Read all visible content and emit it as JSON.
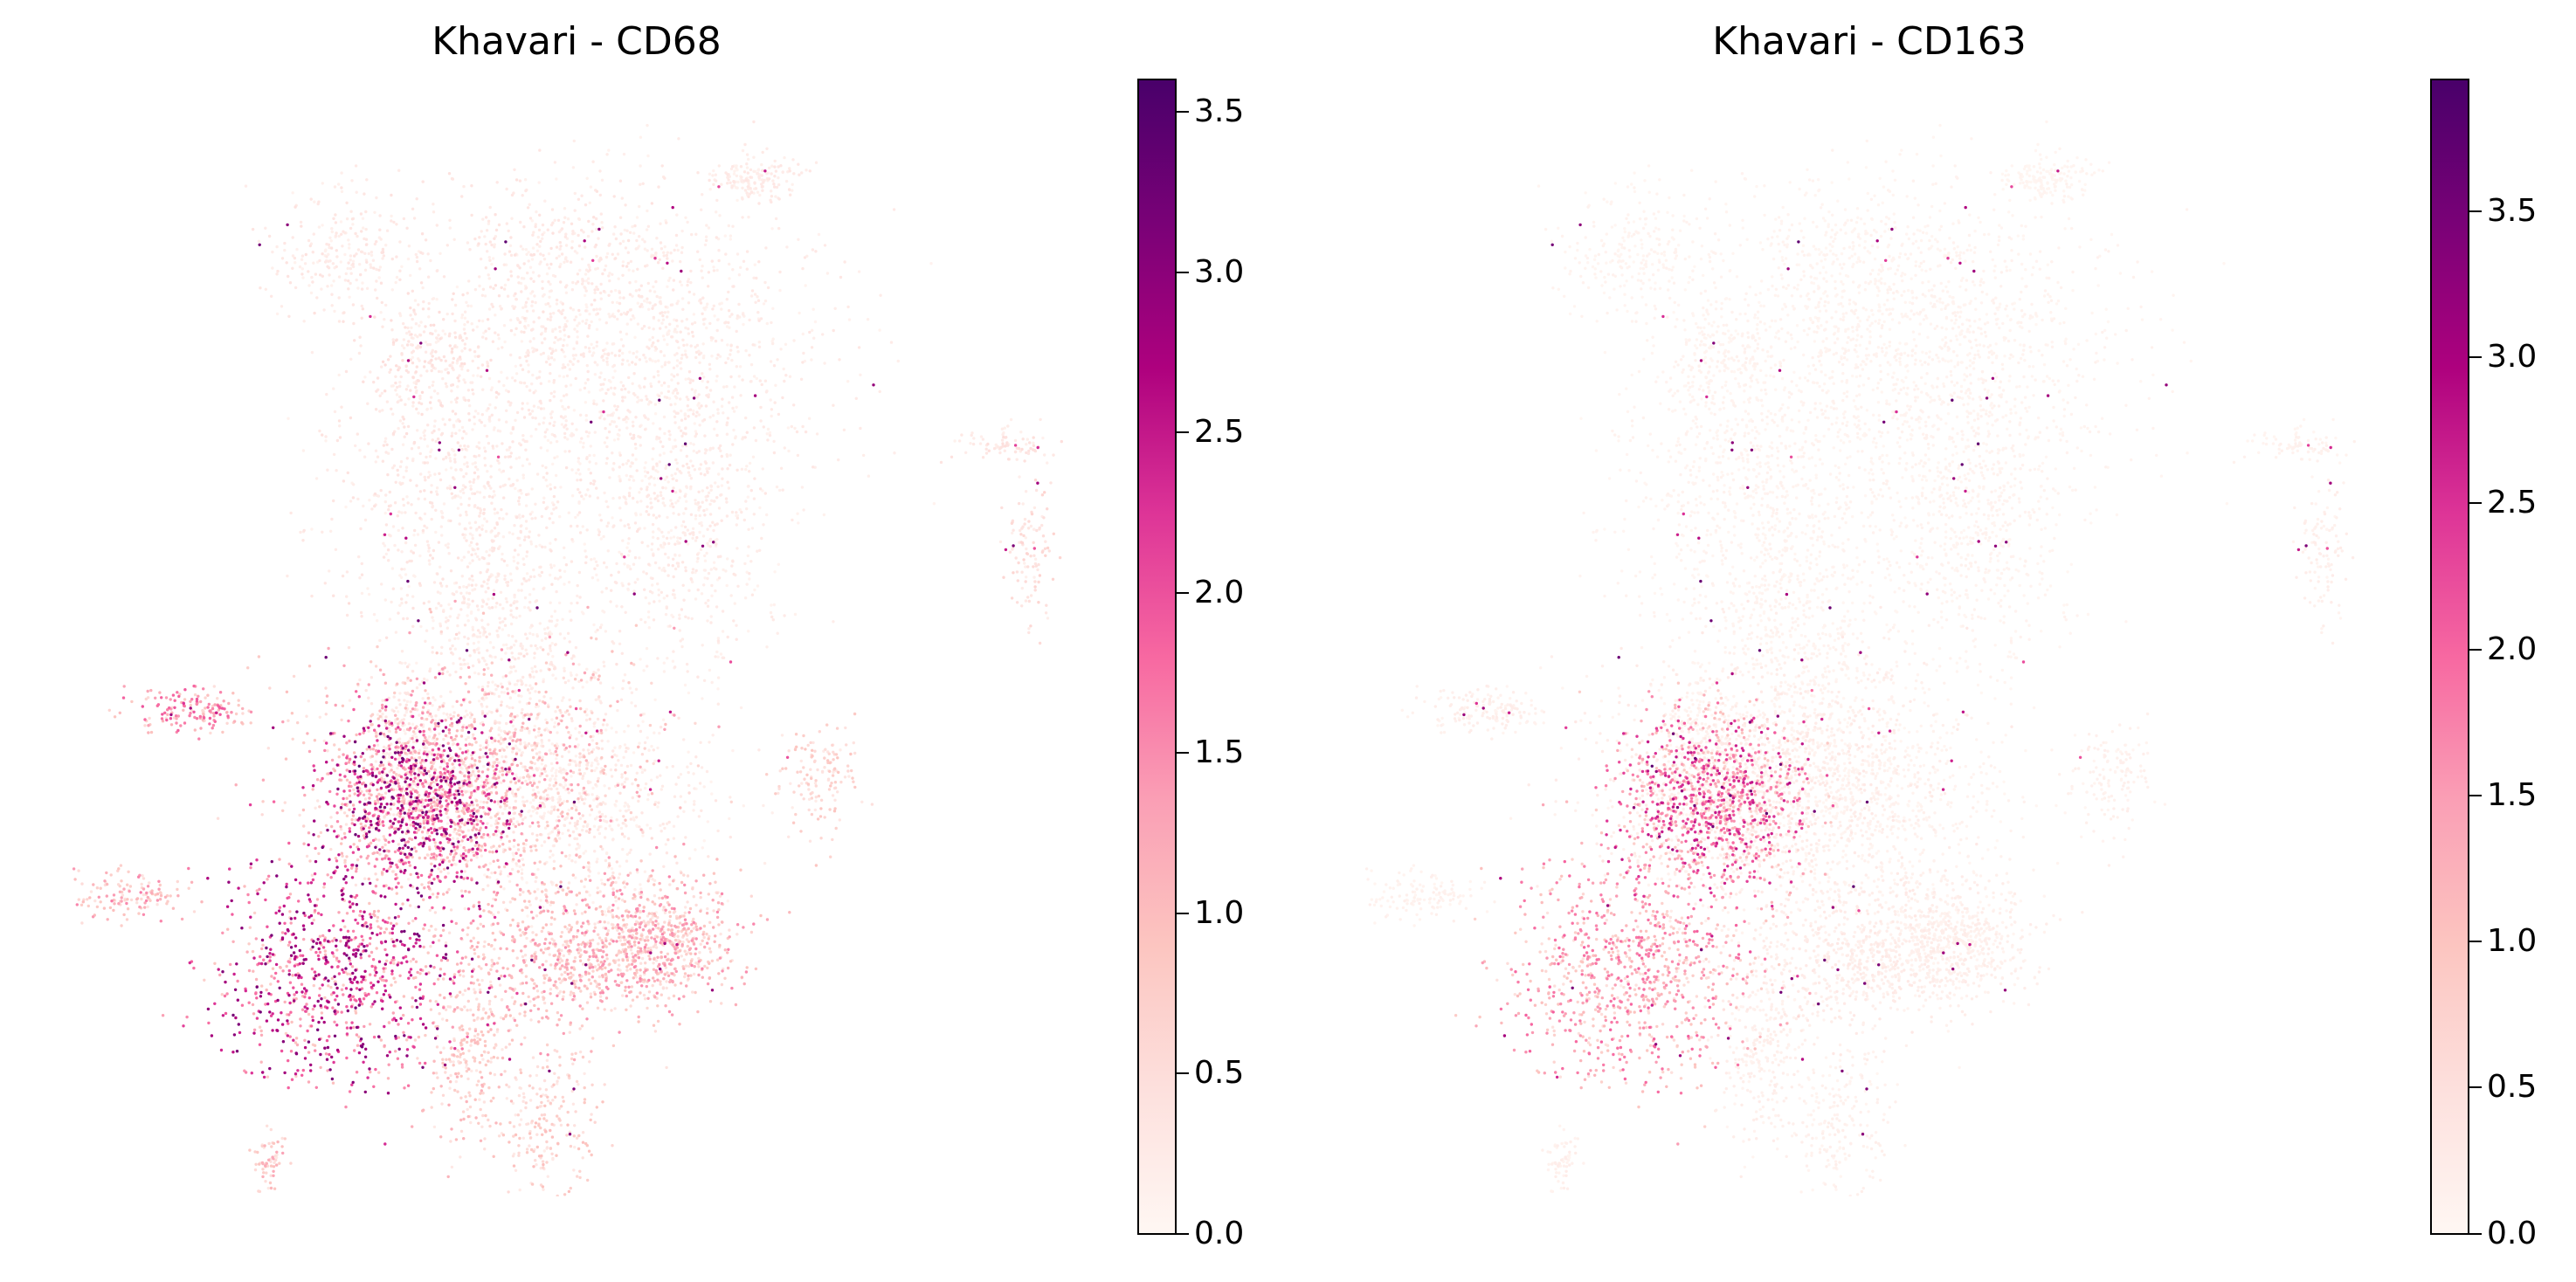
{
  "colors": {
    "colormap": [
      "#fff7f3",
      "#fde0dd",
      "#fcc5c0",
      "#fa9fb5",
      "#f768a1",
      "#dd3497",
      "#ae017e",
      "#7a0177",
      "#49006a"
    ]
  },
  "chart_data": [
    {
      "type": "scatter",
      "title": "Khavari - CD68",
      "colorbar": {
        "min": 0.0,
        "max": 3.6,
        "ticks": [
          "0.0",
          "0.5",
          "1.0",
          "1.5",
          "2.0",
          "2.5",
          "3.0",
          "3.5"
        ]
      },
      "clusters": [
        {
          "center": [
            0.04,
            0.77
          ],
          "spread": [
            0.055,
            0.035
          ],
          "n": 260,
          "expr": 0.25
        },
        {
          "center": [
            0.14,
            0.65
          ],
          "spread": [
            0.045,
            0.035
          ],
          "n": 260,
          "expr": 0.3
        },
        {
          "center": [
            0.3,
            0.77
          ],
          "spread": [
            0.07,
            0.045
          ],
          "n": 280,
          "expr": 0.25
        },
        {
          "center": [
            0.57,
            0.85
          ],
          "spread": [
            0.03,
            0.013
          ],
          "n": 160,
          "expr": 0.2
        },
        {
          "center": [
            0.42,
            0.66
          ],
          "spread": [
            0.12,
            0.09
          ],
          "n": 1300,
          "expr": 0.2
        },
        {
          "center": [
            0.18,
            0.5
          ],
          "spread": [
            0.085,
            0.09
          ],
          "n": 700,
          "expr": 0.25
        },
        {
          "center": [
            0.25,
            0.34
          ],
          "spread": [
            0.06,
            0.11
          ],
          "n": 750,
          "expr": 0.2
        },
        {
          "center": [
            0.48,
            0.47
          ],
          "spread": [
            0.06,
            0.08
          ],
          "n": 600,
          "expr": 0.2
        },
        {
          "center": [
            0.35,
            0.17
          ],
          "spread": [
            0.09,
            0.06
          ],
          "n": 650,
          "expr": 0.2
        },
        {
          "center": [
            0.12,
            0.22
          ],
          "spread": [
            0.025,
            0.04
          ],
          "n": 220,
          "expr": 0.25
        },
        {
          "center": [
            0.21,
            0.19
          ],
          "spread": [
            0.11,
            0.07
          ],
          "n": 1200,
          "expr": 0.85
        },
        {
          "center": [
            0.13,
            0.17
          ],
          "spread": [
            0.06,
            0.05
          ],
          "n": 1000,
          "expr": 2.0
        },
        {
          "center": [
            0.03,
            -0.02
          ],
          "spread": [
            0.08,
            0.06
          ],
          "n": 900,
          "expr": 1.95
        },
        {
          "center": [
            0.33,
            0.0
          ],
          "spread": [
            0.07,
            0.04
          ],
          "n": 650,
          "expr": 0.9
        },
        {
          "center": [
            0.45,
            0.02
          ],
          "spread": [
            0.05,
            0.035
          ],
          "n": 600,
          "expr": 0.95
        },
        {
          "center": [
            0.2,
            -0.1
          ],
          "spread": [
            0.03,
            0.05
          ],
          "n": 260,
          "expr": 0.7
        },
        {
          "center": [
            0.3,
            -0.18
          ],
          "spread": [
            0.035,
            0.04
          ],
          "n": 220,
          "expr": 0.6
        },
        {
          "center": [
            -0.16,
            0.27
          ],
          "spread": [
            0.04,
            0.012
          ],
          "n": 160,
          "expr": 1.2
        },
        {
          "center": [
            -0.25,
            0.07
          ],
          "spread": [
            0.045,
            0.012
          ],
          "n": 130,
          "expr": 1.0
        },
        {
          "center": [
            0.93,
            0.45
          ],
          "spread": [
            0.015,
            0.04
          ],
          "n": 110,
          "expr": 0.4
        },
        {
          "center": [
            0.9,
            0.56
          ],
          "spread": [
            0.03,
            0.01
          ],
          "n": 80,
          "expr": 0.3
        },
        {
          "center": [
            0.66,
            0.2
          ],
          "spread": [
            0.025,
            0.03
          ],
          "n": 140,
          "expr": 0.55
        },
        {
          "center": [
            -0.06,
            -0.22
          ],
          "spread": [
            0.012,
            0.02
          ],
          "n": 60,
          "expr": 0.8
        }
      ]
    },
    {
      "type": "scatter",
      "title": "Khavari - CD163",
      "colorbar": {
        "min": 0.0,
        "max": 3.95,
        "ticks": [
          "0.0",
          "0.5",
          "1.0",
          "1.5",
          "2.0",
          "2.5",
          "3.0",
          "3.5"
        ]
      },
      "clusters": [
        {
          "center": [
            0.04,
            0.77
          ],
          "spread": [
            0.055,
            0.035
          ],
          "n": 260,
          "expr": 0.08
        },
        {
          "center": [
            0.14,
            0.65
          ],
          "spread": [
            0.045,
            0.035
          ],
          "n": 260,
          "expr": 0.08
        },
        {
          "center": [
            0.3,
            0.77
          ],
          "spread": [
            0.07,
            0.045
          ],
          "n": 280,
          "expr": 0.06
        },
        {
          "center": [
            0.57,
            0.85
          ],
          "spread": [
            0.03,
            0.013
          ],
          "n": 160,
          "expr": 0.05
        },
        {
          "center": [
            0.42,
            0.66
          ],
          "spread": [
            0.12,
            0.09
          ],
          "n": 1300,
          "expr": 0.08
        },
        {
          "center": [
            0.18,
            0.5
          ],
          "spread": [
            0.085,
            0.09
          ],
          "n": 700,
          "expr": 0.08
        },
        {
          "center": [
            0.25,
            0.34
          ],
          "spread": [
            0.06,
            0.11
          ],
          "n": 750,
          "expr": 0.08
        },
        {
          "center": [
            0.48,
            0.47
          ],
          "spread": [
            0.06,
            0.08
          ],
          "n": 600,
          "expr": 0.08
        },
        {
          "center": [
            0.35,
            0.17
          ],
          "spread": [
            0.09,
            0.06
          ],
          "n": 650,
          "expr": 0.08
        },
        {
          "center": [
            0.12,
            0.22
          ],
          "spread": [
            0.025,
            0.04
          ],
          "n": 220,
          "expr": 0.08
        },
        {
          "center": [
            0.21,
            0.19
          ],
          "spread": [
            0.11,
            0.07
          ],
          "n": 1200,
          "expr": 0.2
        },
        {
          "center": [
            0.13,
            0.17
          ],
          "spread": [
            0.06,
            0.05
          ],
          "n": 1000,
          "expr": 1.7
        },
        {
          "center": [
            0.03,
            -0.02
          ],
          "spread": [
            0.08,
            0.06
          ],
          "n": 900,
          "expr": 1.25
        },
        {
          "center": [
            0.33,
            0.0
          ],
          "spread": [
            0.07,
            0.04
          ],
          "n": 650,
          "expr": 0.2
        },
        {
          "center": [
            0.45,
            0.02
          ],
          "spread": [
            0.05,
            0.035
          ],
          "n": 600,
          "expr": 0.15
        },
        {
          "center": [
            0.2,
            -0.1
          ],
          "spread": [
            0.03,
            0.05
          ],
          "n": 260,
          "expr": 0.15
        },
        {
          "center": [
            0.3,
            -0.18
          ],
          "spread": [
            0.035,
            0.04
          ],
          "n": 220,
          "expr": 0.12
        },
        {
          "center": [
            -0.16,
            0.27
          ],
          "spread": [
            0.04,
            0.012
          ],
          "n": 160,
          "expr": 0.15
        },
        {
          "center": [
            -0.25,
            0.07
          ],
          "spread": [
            0.045,
            0.012
          ],
          "n": 130,
          "expr": 0.12
        },
        {
          "center": [
            0.93,
            0.45
          ],
          "spread": [
            0.015,
            0.04
          ],
          "n": 110,
          "expr": 0.15
        },
        {
          "center": [
            0.9,
            0.56
          ],
          "spread": [
            0.03,
            0.01
          ],
          "n": 80,
          "expr": 0.1
        },
        {
          "center": [
            0.66,
            0.2
          ],
          "spread": [
            0.025,
            0.03
          ],
          "n": 140,
          "expr": 0.12
        },
        {
          "center": [
            -0.06,
            -0.22
          ],
          "spread": [
            0.012,
            0.02
          ],
          "n": 60,
          "expr": 0.15
        }
      ]
    }
  ]
}
